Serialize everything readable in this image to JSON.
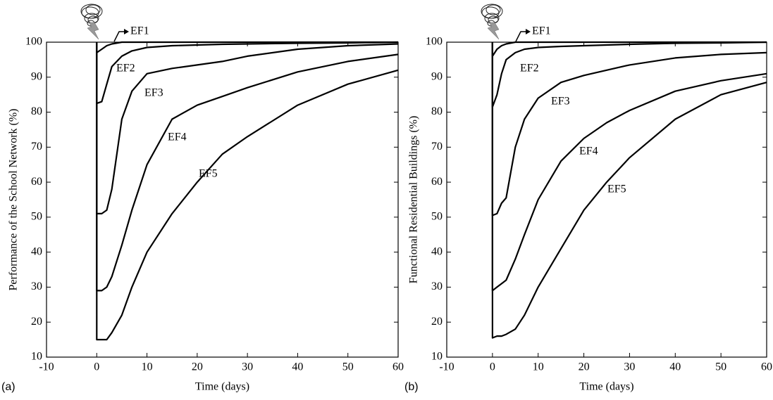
{
  "chart_data": [
    {
      "type": "line",
      "panel_label": "(a)",
      "ylabel": "Performance of the School Network (%)",
      "xlabel": "Time (days)",
      "xlim": [
        -10,
        60
      ],
      "xticks": [
        -10,
        0,
        10,
        20,
        30,
        40,
        50,
        60
      ],
      "ylim": [
        10,
        100
      ],
      "yticks": [
        10,
        20,
        30,
        40,
        50,
        60,
        70,
        80,
        90,
        100
      ],
      "x": [
        0,
        0,
        1,
        2,
        3,
        5,
        7,
        10,
        15,
        20,
        25,
        30,
        40,
        50,
        60
      ],
      "series": [
        {
          "name": "EF1",
          "color": "#000000",
          "values": [
            100,
            97,
            98,
            99,
            99.5,
            100,
            100,
            100,
            100,
            100,
            100,
            100,
            100,
            100,
            100
          ]
        },
        {
          "name": "EF2",
          "color": "#000000",
          "values": [
            100,
            82.5,
            83,
            88,
            93,
            96,
            97.5,
            98.5,
            99,
            99.2,
            99.4,
            99.5,
            99.7,
            99.8,
            100
          ]
        },
        {
          "name": "EF3",
          "color": "#000000",
          "values": [
            100,
            51,
            51,
            52,
            58,
            78,
            86,
            91,
            92.5,
            93.5,
            94.5,
            96,
            98,
            99,
            99.5
          ]
        },
        {
          "name": "EF4",
          "color": "#000000",
          "values": [
            100,
            29,
            29,
            30,
            33,
            42,
            52,
            65,
            78,
            82,
            84.5,
            87,
            91.5,
            94.5,
            96.5
          ]
        },
        {
          "name": "EF5",
          "color": "#000000",
          "values": [
            100,
            15,
            15,
            15,
            17,
            22,
            30,
            40,
            51,
            60,
            68,
            73,
            82,
            88,
            92
          ]
        }
      ]
    },
    {
      "type": "line",
      "panel_label": "(b)",
      "ylabel": "Functional Residential Buildings (%)",
      "xlabel": "Time (days)",
      "xlim": [
        -10,
        60
      ],
      "xticks": [
        -10,
        0,
        10,
        20,
        30,
        40,
        50,
        60
      ],
      "ylim": [
        10,
        100
      ],
      "yticks": [
        10,
        20,
        30,
        40,
        50,
        60,
        70,
        80,
        90,
        100
      ],
      "x": [
        0,
        0,
        1,
        2,
        3,
        5,
        7,
        10,
        15,
        20,
        25,
        30,
        40,
        50,
        60
      ],
      "series": [
        {
          "name": "EF1",
          "color": "#000000",
          "values": [
            100,
            96,
            98,
            99,
            99.5,
            100,
            100,
            100,
            100,
            100,
            100,
            100,
            100,
            100,
            100
          ]
        },
        {
          "name": "EF2",
          "color": "#000000",
          "values": [
            100,
            81.5,
            85,
            91,
            95,
            97,
            98,
            98.5,
            98.8,
            99,
            99.2,
            99.4,
            99.7,
            99.8,
            100
          ]
        },
        {
          "name": "EF3",
          "color": "#000000",
          "values": [
            100,
            50.5,
            51,
            54,
            55.5,
            70,
            78,
            84,
            88.5,
            90.5,
            92,
            93.5,
            95.5,
            96.5,
            97
          ]
        },
        {
          "name": "EF4",
          "color": "#000000",
          "values": [
            100,
            29,
            30,
            31,
            32,
            38,
            45,
            55,
            66,
            72.5,
            77,
            80.5,
            86,
            89,
            91
          ]
        },
        {
          "name": "EF5",
          "color": "#000000",
          "values": [
            100,
            15.5,
            16,
            16,
            16.5,
            18,
            22,
            30,
            41,
            52,
            60,
            67,
            78,
            85,
            88.5
          ]
        }
      ]
    }
  ]
}
